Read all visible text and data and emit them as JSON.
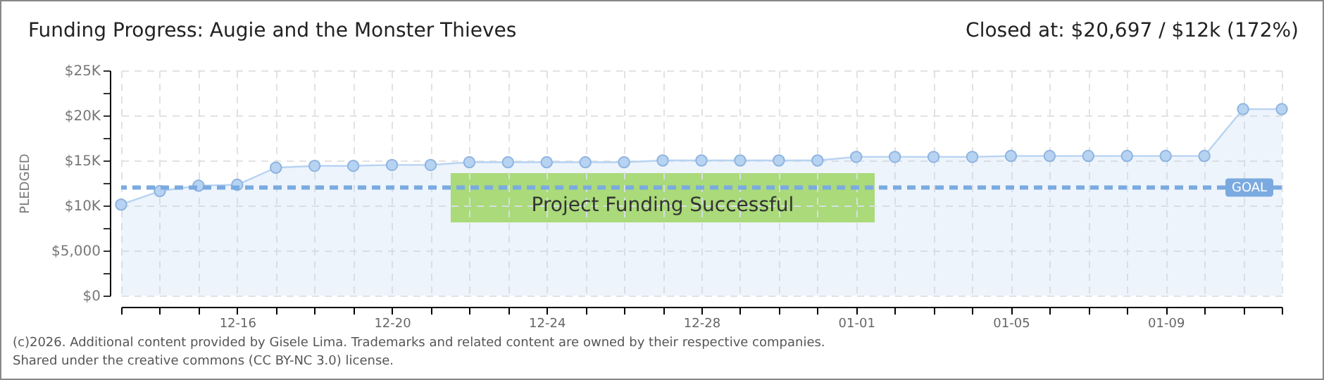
{
  "chart_data": {
    "type": "area",
    "title": "Funding Progress: Augie and the Monster Thieves",
    "subtitle": "Closed at:  $20,697 / $12k (172%)",
    "ylabel": "PLEDGED",
    "categories": [
      null,
      null,
      null,
      "12-16",
      null,
      null,
      null,
      "12-20",
      null,
      null,
      null,
      "12-24",
      null,
      null,
      null,
      "12-28",
      null,
      null,
      null,
      "01-01",
      null,
      null,
      null,
      "01-05",
      null,
      null,
      null,
      "01-09",
      null,
      null,
      null
    ],
    "series": [
      {
        "color": "#b7d3f2",
        "values": [
          10100,
          11600,
          12200,
          12300,
          14200,
          14400,
          14400,
          14500,
          14500,
          14800,
          14800,
          14800,
          14800,
          14800,
          15000,
          15000,
          15000,
          15000,
          15000,
          15400,
          15400,
          15400,
          15400,
          15500,
          15500,
          15500,
          15500,
          15500,
          15500,
          20697,
          20697
        ]
      }
    ],
    "ylim": [
      0,
      25000
    ],
    "yticks": [
      {
        "value": 0,
        "label": "$0"
      },
      {
        "value": 2500,
        "label": null
      },
      {
        "value": 5000,
        "label": "$5,000"
      },
      {
        "value": 7500,
        "label": null
      },
      {
        "value": 10000,
        "label": "$10K"
      },
      {
        "value": 12500,
        "label": null
      },
      {
        "value": 15000,
        "label": "$15K"
      },
      {
        "value": 17500,
        "label": null
      },
      {
        "value": 20000,
        "label": "$20K"
      },
      {
        "value": 22500,
        "label": null
      },
      {
        "value": 25000,
        "label": "$25K"
      }
    ],
    "grid": true,
    "marker": "circle",
    "ref_lines": [
      {
        "axis": "y",
        "value": 12000,
        "label": "GOAL",
        "color": "#7aaae0",
        "line_style": "dashed"
      }
    ],
    "annotations": [
      "Project Funding Successful",
      "(c)2026. Additional content provided by Gisele Lima. Trademarks and related content are owned by their respective companies.",
      "Shared under the creative commons (CC BY-NC 3.0) license."
    ]
  }
}
